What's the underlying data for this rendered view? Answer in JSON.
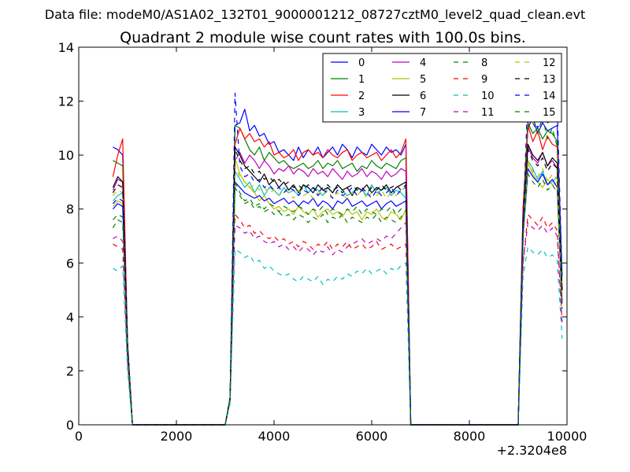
{
  "page": {
    "suptitle": "Data file: modeM0/AS1A02_132T01_9000001212_08727cztM0_level2_quad_clean.evt"
  },
  "chart_data": {
    "type": "line",
    "title": "Quadrant 2 module wise count rates with 100.0s bins.",
    "xlabel": "",
    "ylabel": "",
    "x_offset_label": "+2.3204e8",
    "xlim": [
      0,
      10000
    ],
    "ylim": [
      0,
      14
    ],
    "xticks": [
      0,
      2000,
      4000,
      6000,
      8000,
      10000
    ],
    "yticks": [
      0,
      2,
      4,
      6,
      8,
      10,
      12,
      14
    ],
    "grid": false,
    "legend_position": "top-right",
    "legend_columns": 4,
    "x": [
      700,
      800,
      900,
      1000,
      1100,
      3000,
      3100,
      3200,
      3300,
      3400,
      3500,
      3600,
      3700,
      3800,
      3900,
      4000,
      4100,
      4200,
      4300,
      4400,
      4500,
      4600,
      4700,
      4800,
      4900,
      5000,
      5100,
      5200,
      5300,
      5400,
      5500,
      5600,
      5700,
      5800,
      5900,
      6000,
      6100,
      6200,
      6300,
      6400,
      6500,
      6600,
      6700,
      6800,
      6900,
      9000,
      9100,
      9200,
      9300,
      9400,
      9500,
      9600,
      9700,
      9800,
      9900
    ],
    "series": [
      {
        "name": "0",
        "color": "#0000ff",
        "dash": "solid",
        "values": [
          10.3,
          10.2,
          10.0,
          3.0,
          0,
          0,
          1.0,
          11.1,
          11.2,
          11.7,
          10.9,
          11.1,
          10.7,
          10.8,
          10.4,
          10.5,
          10.1,
          10.2,
          10.0,
          9.8,
          10.3,
          9.9,
          10.2,
          10.0,
          10.3,
          9.9,
          10.1,
          10.3,
          10.0,
          10.4,
          10.2,
          9.9,
          10.3,
          10.1,
          10.0,
          10.4,
          10.2,
          10.0,
          10.3,
          10.1,
          10.2,
          10.0,
          10.4,
          0,
          0,
          0,
          8.0,
          11.0,
          11.4,
          10.8,
          11.2,
          10.9,
          11.0,
          11.1,
          5.5
        ]
      },
      {
        "name": "1",
        "color": "#008000",
        "dash": "solid",
        "values": [
          9.8,
          9.7,
          9.6,
          3.0,
          0,
          0,
          1.0,
          11.1,
          11.0,
          10.6,
          10.2,
          10.0,
          10.3,
          9.8,
          10.1,
          9.9,
          9.7,
          9.8,
          9.6,
          9.5,
          9.6,
          9.7,
          9.5,
          9.6,
          9.8,
          9.5,
          9.7,
          9.6,
          9.8,
          9.5,
          9.6,
          9.7,
          9.4,
          9.6,
          9.5,
          9.8,
          9.6,
          9.5,
          9.7,
          9.6,
          9.5,
          9.8,
          9.9,
          0,
          0,
          0,
          8.0,
          11.2,
          10.8,
          11.0,
          10.6,
          10.9,
          10.8,
          10.5,
          5.0
        ]
      },
      {
        "name": "2",
        "color": "#ff0000",
        "dash": "solid",
        "values": [
          9.2,
          10.0,
          10.6,
          3.0,
          0,
          0,
          1.0,
          10.4,
          11.0,
          10.6,
          10.8,
          10.5,
          10.6,
          10.3,
          10.5,
          10.0,
          10.1,
          9.9,
          10.0,
          10.2,
          9.8,
          10.1,
          10.2,
          10.0,
          10.1,
          9.9,
          10.2,
          10.0,
          9.9,
          10.1,
          10.2,
          9.8,
          10.0,
          10.1,
          9.9,
          10.0,
          10.1,
          9.8,
          10.0,
          10.2,
          9.9,
          10.1,
          10.6,
          0,
          0,
          0,
          8.0,
          11.1,
          10.5,
          10.9,
          10.2,
          10.7,
          10.4,
          10.3,
          5.0
        ]
      },
      {
        "name": "3",
        "color": "#00bfbf",
        "dash": "solid",
        "values": [
          8.3,
          8.5,
          8.6,
          2.8,
          0,
          0,
          1.0,
          9.4,
          9.1,
          8.8,
          9.0,
          8.6,
          8.9,
          8.5,
          8.8,
          8.7,
          8.5,
          8.8,
          8.6,
          8.7,
          8.5,
          8.9,
          8.6,
          8.8,
          8.7,
          8.5,
          8.8,
          8.6,
          8.9,
          8.7,
          8.5,
          8.6,
          8.8,
          8.7,
          8.5,
          8.9,
          8.6,
          8.7,
          8.8,
          8.5,
          8.7,
          8.6,
          8.4,
          0,
          0,
          0,
          7.0,
          9.8,
          9.5,
          9.1,
          9.4,
          8.9,
          9.0,
          9.2,
          4.5
        ]
      },
      {
        "name": "4",
        "color": "#bf00bf",
        "dash": "solid",
        "values": [
          8.7,
          9.1,
          9.0,
          3.0,
          0,
          0,
          1.0,
          9.8,
          10.1,
          9.7,
          10.0,
          9.8,
          9.5,
          9.8,
          9.6,
          9.3,
          9.5,
          9.4,
          9.6,
          9.3,
          9.5,
          9.4,
          9.2,
          9.5,
          9.3,
          9.4,
          9.2,
          9.5,
          9.3,
          9.1,
          9.4,
          9.2,
          9.3,
          9.5,
          9.2,
          9.4,
          9.3,
          9.1,
          9.4,
          9.2,
          9.3,
          9.5,
          9.4,
          0,
          0,
          0,
          7.5,
          10.3,
          9.9,
          9.7,
          10.1,
          9.6,
          9.8,
          9.5,
          5.0
        ]
      },
      {
        "name": "5",
        "color": "#bfbf00",
        "dash": "solid",
        "values": [
          8.1,
          8.3,
          8.2,
          2.8,
          0,
          0,
          1.0,
          9.9,
          9.3,
          9.0,
          8.8,
          8.6,
          8.3,
          8.5,
          8.2,
          8.0,
          8.1,
          7.9,
          8.0,
          7.8,
          8.1,
          7.9,
          7.8,
          8.0,
          7.7,
          7.9,
          8.0,
          7.8,
          7.9,
          7.7,
          8.0,
          7.8,
          7.9,
          7.6,
          7.9,
          7.8,
          8.0,
          7.7,
          7.6,
          7.9,
          7.8,
          7.6,
          8.0,
          0,
          0,
          0,
          7.0,
          9.7,
          9.3,
          9.0,
          8.8,
          9.1,
          8.9,
          9.0,
          4.5
        ]
      },
      {
        "name": "6",
        "color": "#000000",
        "dash": "solid",
        "values": [
          8.8,
          9.2,
          9.0,
          3.0,
          0,
          0,
          1.0,
          10.3,
          10.0,
          9.6,
          9.4,
          9.2,
          9.0,
          9.3,
          8.9,
          9.1,
          8.8,
          9.0,
          8.7,
          8.9,
          8.6,
          8.9,
          8.8,
          8.6,
          8.9,
          8.7,
          8.8,
          8.6,
          8.9,
          8.7,
          8.8,
          8.5,
          8.8,
          8.7,
          8.9,
          8.6,
          8.8,
          8.7,
          8.9,
          8.6,
          8.8,
          8.9,
          9.0,
          0,
          0,
          0,
          7.5,
          10.4,
          10.0,
          9.8,
          10.1,
          9.6,
          9.9,
          9.7,
          5.0
        ]
      },
      {
        "name": "7",
        "color": "#0000ff",
        "dash": "solid",
        "values": [
          8.0,
          8.2,
          8.1,
          2.8,
          0,
          0,
          1.0,
          9.0,
          8.8,
          8.6,
          8.5,
          8.4,
          8.5,
          8.3,
          8.4,
          8.2,
          8.3,
          8.4,
          8.2,
          8.3,
          8.1,
          8.3,
          8.2,
          8.4,
          8.1,
          8.3,
          8.2,
          8.0,
          8.3,
          8.2,
          8.4,
          8.1,
          8.2,
          8.3,
          8.1,
          8.2,
          8.3,
          8.0,
          8.2,
          8.3,
          8.1,
          8.2,
          8.3,
          0,
          0,
          0,
          7.0,
          9.5,
          9.2,
          9.0,
          9.3,
          8.9,
          9.1,
          8.8,
          4.5
        ]
      },
      {
        "name": "8",
        "color": "#008000",
        "dash": "dashed",
        "values": [
          7.6,
          7.8,
          7.7,
          2.7,
          0,
          0,
          1.0,
          9.0,
          8.6,
          8.3,
          8.4,
          8.1,
          8.2,
          8.0,
          8.2,
          8.1,
          7.9,
          8.1,
          8.0,
          7.9,
          8.1,
          8.0,
          7.8,
          8.0,
          7.9,
          8.1,
          7.8,
          8.0,
          7.9,
          7.8,
          8.0,
          7.9,
          8.1,
          7.8,
          8.0,
          7.9,
          7.8,
          8.0,
          7.9,
          8.1,
          7.8,
          8.0,
          8.1,
          0,
          0,
          0,
          7.0,
          9.3,
          9.0,
          8.8,
          9.1,
          8.7,
          8.9,
          8.6,
          4.3
        ]
      },
      {
        "name": "9",
        "color": "#ff0000",
        "dash": "dashed",
        "values": [
          6.7,
          6.6,
          6.5,
          2.3,
          0,
          0,
          0.9,
          7.8,
          7.6,
          7.3,
          7.4,
          7.1,
          7.2,
          7.0,
          6.9,
          7.0,
          6.8,
          6.9,
          6.7,
          6.8,
          6.6,
          6.8,
          6.7,
          6.5,
          6.7,
          6.6,
          6.8,
          6.5,
          6.7,
          6.6,
          6.8,
          6.5,
          6.6,
          6.7,
          6.5,
          6.6,
          6.8,
          6.5,
          6.6,
          6.7,
          6.5,
          6.6,
          6.7,
          0,
          0,
          0,
          6.0,
          7.8,
          7.6,
          7.4,
          7.7,
          7.3,
          7.5,
          7.2,
          3.8
        ]
      },
      {
        "name": "10",
        "color": "#00bfbf",
        "dash": "dashed",
        "values": [
          5.8,
          5.7,
          5.9,
          2.0,
          0,
          0,
          0.8,
          6.5,
          6.4,
          6.2,
          6.3,
          6.0,
          6.1,
          5.8,
          5.9,
          5.7,
          5.6,
          5.5,
          5.6,
          5.4,
          5.3,
          5.5,
          5.4,
          5.3,
          5.5,
          5.2,
          5.4,
          5.3,
          5.5,
          5.4,
          5.6,
          5.5,
          5.7,
          5.6,
          5.8,
          5.6,
          5.7,
          5.8,
          5.6,
          5.8,
          5.7,
          5.9,
          6.0,
          0,
          0,
          0,
          5.5,
          6.6,
          6.4,
          6.3,
          6.5,
          6.2,
          6.3,
          6.1,
          3.2
        ]
      },
      {
        "name": "11",
        "color": "#bf00bf",
        "dash": "dashed",
        "values": [
          6.9,
          7.0,
          6.8,
          2.4,
          0,
          0,
          0.9,
          7.4,
          7.3,
          7.1,
          7.2,
          6.9,
          7.0,
          6.8,
          6.7,
          6.8,
          6.6,
          6.7,
          6.5,
          6.6,
          6.4,
          6.6,
          6.5,
          6.3,
          6.5,
          6.4,
          6.6,
          6.3,
          6.5,
          6.4,
          6.6,
          6.7,
          6.8,
          6.9,
          6.7,
          6.8,
          6.9,
          6.8,
          7.0,
          6.9,
          7.1,
          7.3,
          7.5,
          0,
          0,
          0,
          6.0,
          7.5,
          7.3,
          7.2,
          7.4,
          7.1,
          7.3,
          7.0,
          3.7
        ]
      },
      {
        "name": "12",
        "color": "#bfbf00",
        "dash": "dashed",
        "values": [
          8.5,
          8.7,
          8.6,
          2.9,
          0,
          0,
          1.0,
          9.6,
          9.2,
          9.0,
          8.8,
          8.9,
          8.7,
          8.8,
          8.6,
          8.7,
          8.5,
          8.7,
          8.6,
          8.4,
          8.7,
          8.5,
          8.6,
          8.4,
          8.6,
          8.5,
          8.7,
          8.4,
          8.6,
          8.5,
          8.4,
          8.6,
          8.5,
          8.7,
          8.4,
          8.6,
          8.5,
          8.7,
          8.4,
          8.6,
          8.5,
          8.7,
          8.8,
          0,
          0,
          0,
          7.2,
          9.8,
          9.4,
          9.2,
          9.5,
          9.0,
          9.3,
          9.1,
          4.7
        ]
      },
      {
        "name": "13",
        "color": "#000000",
        "dash": "dashed",
        "values": [
          8.6,
          8.9,
          8.8,
          2.9,
          0,
          0,
          1.0,
          10.2,
          9.8,
          9.5,
          9.6,
          9.3,
          9.4,
          9.1,
          9.2,
          9.0,
          9.1,
          8.9,
          9.0,
          8.8,
          8.9,
          8.7,
          8.9,
          8.8,
          8.6,
          8.8,
          8.9,
          8.7,
          8.8,
          8.6,
          8.8,
          8.9,
          8.7,
          8.8,
          8.6,
          8.8,
          8.7,
          8.9,
          8.7,
          8.8,
          8.9,
          8.7,
          8.9,
          0,
          0,
          0,
          7.4,
          10.2,
          9.8,
          9.6,
          9.9,
          9.4,
          9.7,
          9.5,
          4.8
        ]
      },
      {
        "name": "14",
        "color": "#0000ff",
        "dash": "dashed",
        "values": [
          8.2,
          8.4,
          8.3,
          2.8,
          0,
          0,
          1.0,
          12.3,
          9.6,
          9.2,
          9.3,
          9.0,
          9.1,
          8.8,
          8.9,
          8.7,
          8.8,
          8.6,
          8.8,
          8.7,
          8.5,
          8.7,
          8.6,
          8.8,
          8.5,
          8.7,
          8.6,
          8.4,
          8.7,
          8.5,
          8.6,
          8.8,
          8.5,
          8.7,
          8.6,
          8.4,
          8.7,
          8.5,
          8.6,
          8.8,
          8.5,
          8.7,
          8.8,
          0,
          0,
          0,
          7.5,
          12.4,
          11.5,
          11.0,
          11.6,
          11.2,
          11.3,
          11.8,
          5.5
        ]
      },
      {
        "name": "15",
        "color": "#008000",
        "dash": "dashed",
        "values": [
          7.3,
          7.6,
          7.5,
          2.6,
          0,
          0,
          1.0,
          8.8,
          8.5,
          8.2,
          8.3,
          8.0,
          8.1,
          7.9,
          8.0,
          7.8,
          7.9,
          7.7,
          7.8,
          7.6,
          7.8,
          7.7,
          7.5,
          7.7,
          7.6,
          7.8,
          7.5,
          7.7,
          7.6,
          7.8,
          7.5,
          7.7,
          7.6,
          7.5,
          7.7,
          7.6,
          7.8,
          7.5,
          7.7,
          7.6,
          7.5,
          7.7,
          7.9,
          0,
          0,
          0,
          6.8,
          11.7,
          11.2,
          10.8,
          11.4,
          10.6,
          11.0,
          10.3,
          4.5
        ]
      }
    ]
  }
}
